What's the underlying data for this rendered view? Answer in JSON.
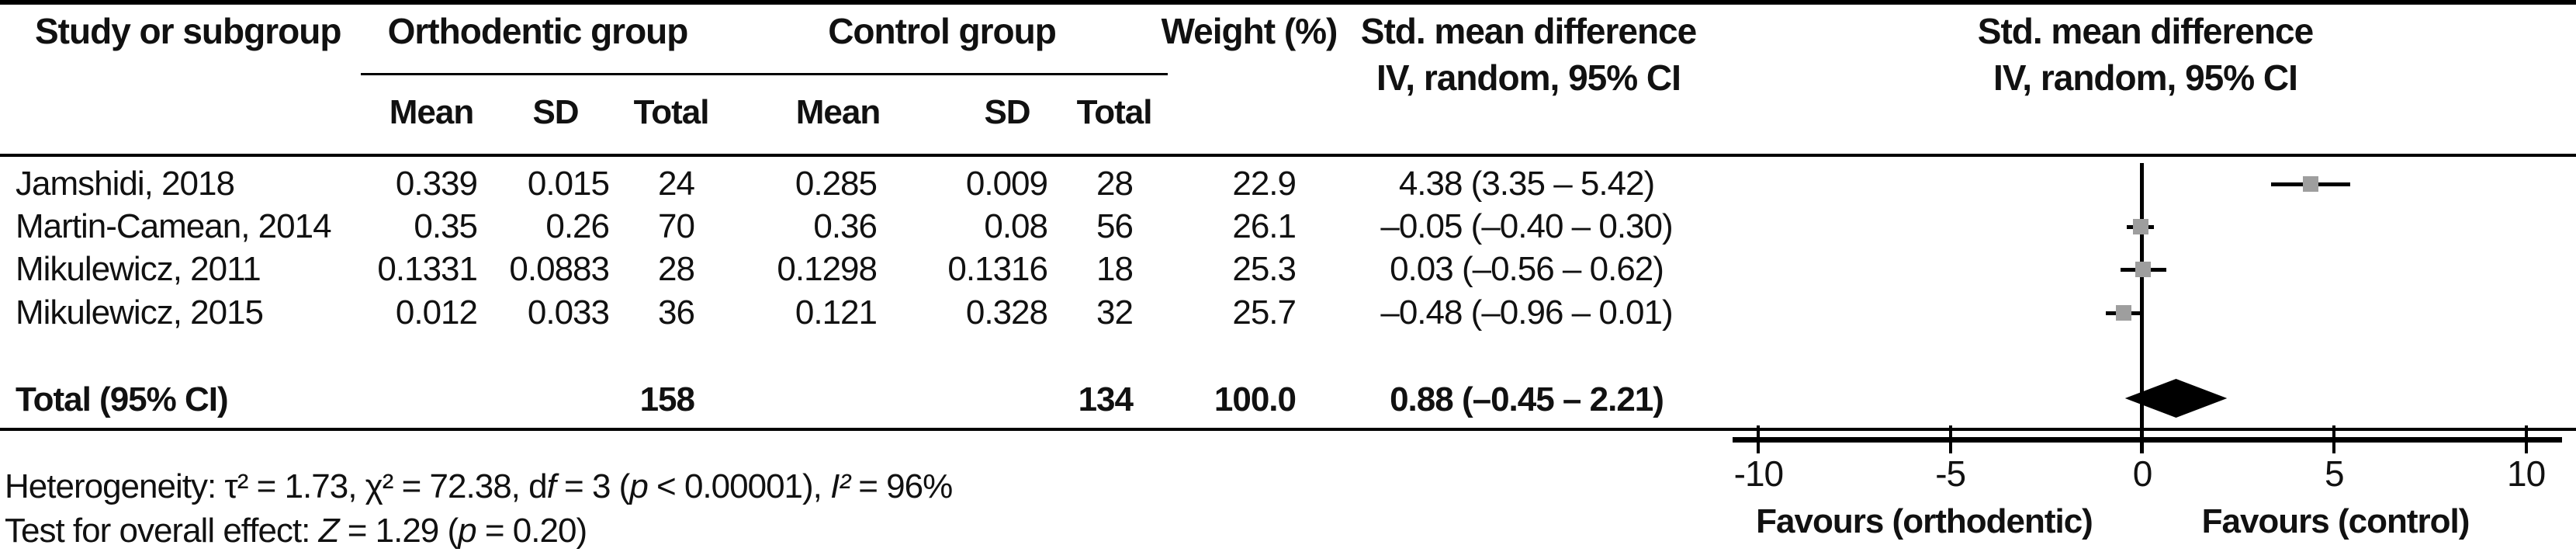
{
  "table": {
    "header": {
      "study": "Study or subgroup",
      "group1": "Orthodentic group",
      "group2": "Control group",
      "weight": "Weight (%)",
      "smd_line1": "Std. mean difference",
      "smd_line2": "IV, random, 95% CI",
      "sub": {
        "mean": "Mean",
        "sd": "SD",
        "total": "Total"
      }
    },
    "rows": [
      {
        "study": "Jamshidi, 2018",
        "g1_mean": "0.339",
        "g1_sd": "0.015",
        "g1_total": "24",
        "g2_mean": "0.285",
        "g2_sd": "0.009",
        "g2_total": "28",
        "weight": "22.9",
        "smd_ci": "4.38 (3.35 – 5.42)"
      },
      {
        "study": "Martin-Camean, 2014",
        "g1_mean": "0.35",
        "g1_sd": "0.26",
        "g1_total": "70",
        "g2_mean": "0.36",
        "g2_sd": "0.08",
        "g2_total": "56",
        "weight": "26.1",
        "smd_ci": "–0.05 (–0.40 – 0.30)"
      },
      {
        "study": "Mikulewicz, 2011",
        "g1_mean": "0.1331",
        "g1_sd": "0.0883",
        "g1_total": "28",
        "g2_mean": "0.1298",
        "g2_sd": "0.1316",
        "g2_total": "18",
        "weight": "25.3",
        "smd_ci": "0.03 (–0.56 – 0.62)"
      },
      {
        "study": "Mikulewicz, 2015",
        "g1_mean": "0.012",
        "g1_sd": "0.033",
        "g1_total": "36",
        "g2_mean": "0.121",
        "g2_sd": "0.328",
        "g2_total": "32",
        "weight": "25.7",
        "smd_ci": "–0.48 (–0.96 – 0.01)"
      }
    ],
    "total_row": {
      "label": "Total (95% CI)",
      "g1_total": "158",
      "g2_total": "134",
      "weight": "100.0",
      "smd_ci": "0.88 (–0.45 – 2.21)"
    }
  },
  "footnotes": {
    "heterogeneity_parts": [
      "Heterogeneity: τ² = 1.73, χ² = 72.38, d",
      "f",
      " = 3 (",
      "p",
      " < 0.00001), ",
      "I²",
      " = 96%"
    ],
    "overall_effect_parts": [
      "Test for overall effect: ",
      "Z",
      " = 1.29 (",
      "p",
      " = 0.20)"
    ]
  },
  "forest": {
    "axis": {
      "ticks": [
        "-10",
        "-5",
        "0",
        "5",
        "10"
      ],
      "label_left": "Favours (orthodentic)",
      "label_right": "Favours (control)"
    },
    "colors": {
      "square": "#9e9e9e",
      "line": "#000000",
      "diamond": "#000000"
    }
  },
  "chart_data": {
    "type": "forest",
    "title": "Std. mean difference, IV, random, 95% CI",
    "studies": [
      {
        "name": "Jamshidi, 2018",
        "estimate": 4.38,
        "ci_low": 3.35,
        "ci_high": 5.42,
        "weight_pct": 22.9,
        "n_orthodontic": 24,
        "n_control": 28
      },
      {
        "name": "Martin-Camean, 2014",
        "estimate": -0.05,
        "ci_low": -0.4,
        "ci_high": 0.3,
        "weight_pct": 26.1,
        "n_orthodontic": 70,
        "n_control": 56
      },
      {
        "name": "Mikulewicz, 2011",
        "estimate": 0.03,
        "ci_low": -0.56,
        "ci_high": 0.62,
        "weight_pct": 25.3,
        "n_orthodontic": 28,
        "n_control": 18
      },
      {
        "name": "Mikulewicz, 2015",
        "estimate": -0.48,
        "ci_low": -0.96,
        "ci_high": 0.01,
        "weight_pct": 25.7,
        "n_orthodontic": 36,
        "n_control": 32
      }
    ],
    "total": {
      "name": "Total (95% CI)",
      "estimate": 0.88,
      "ci_low": -0.45,
      "ci_high": 2.21,
      "weight_pct": 100.0,
      "n_orthodontic": 158,
      "n_control": 134
    },
    "xlim": [
      -10,
      10
    ],
    "x_ticks": [
      -10,
      -5,
      0,
      5,
      10
    ],
    "axis_label_left": "Favours (orthodontic)",
    "axis_label_right": "Favours (control)",
    "heterogeneity": {
      "tau2": 1.73,
      "chi2": 72.38,
      "df": 3,
      "p": "< 0.00001",
      "I2_pct": 96
    },
    "overall_effect": {
      "Z": 1.29,
      "p": 0.2
    }
  }
}
